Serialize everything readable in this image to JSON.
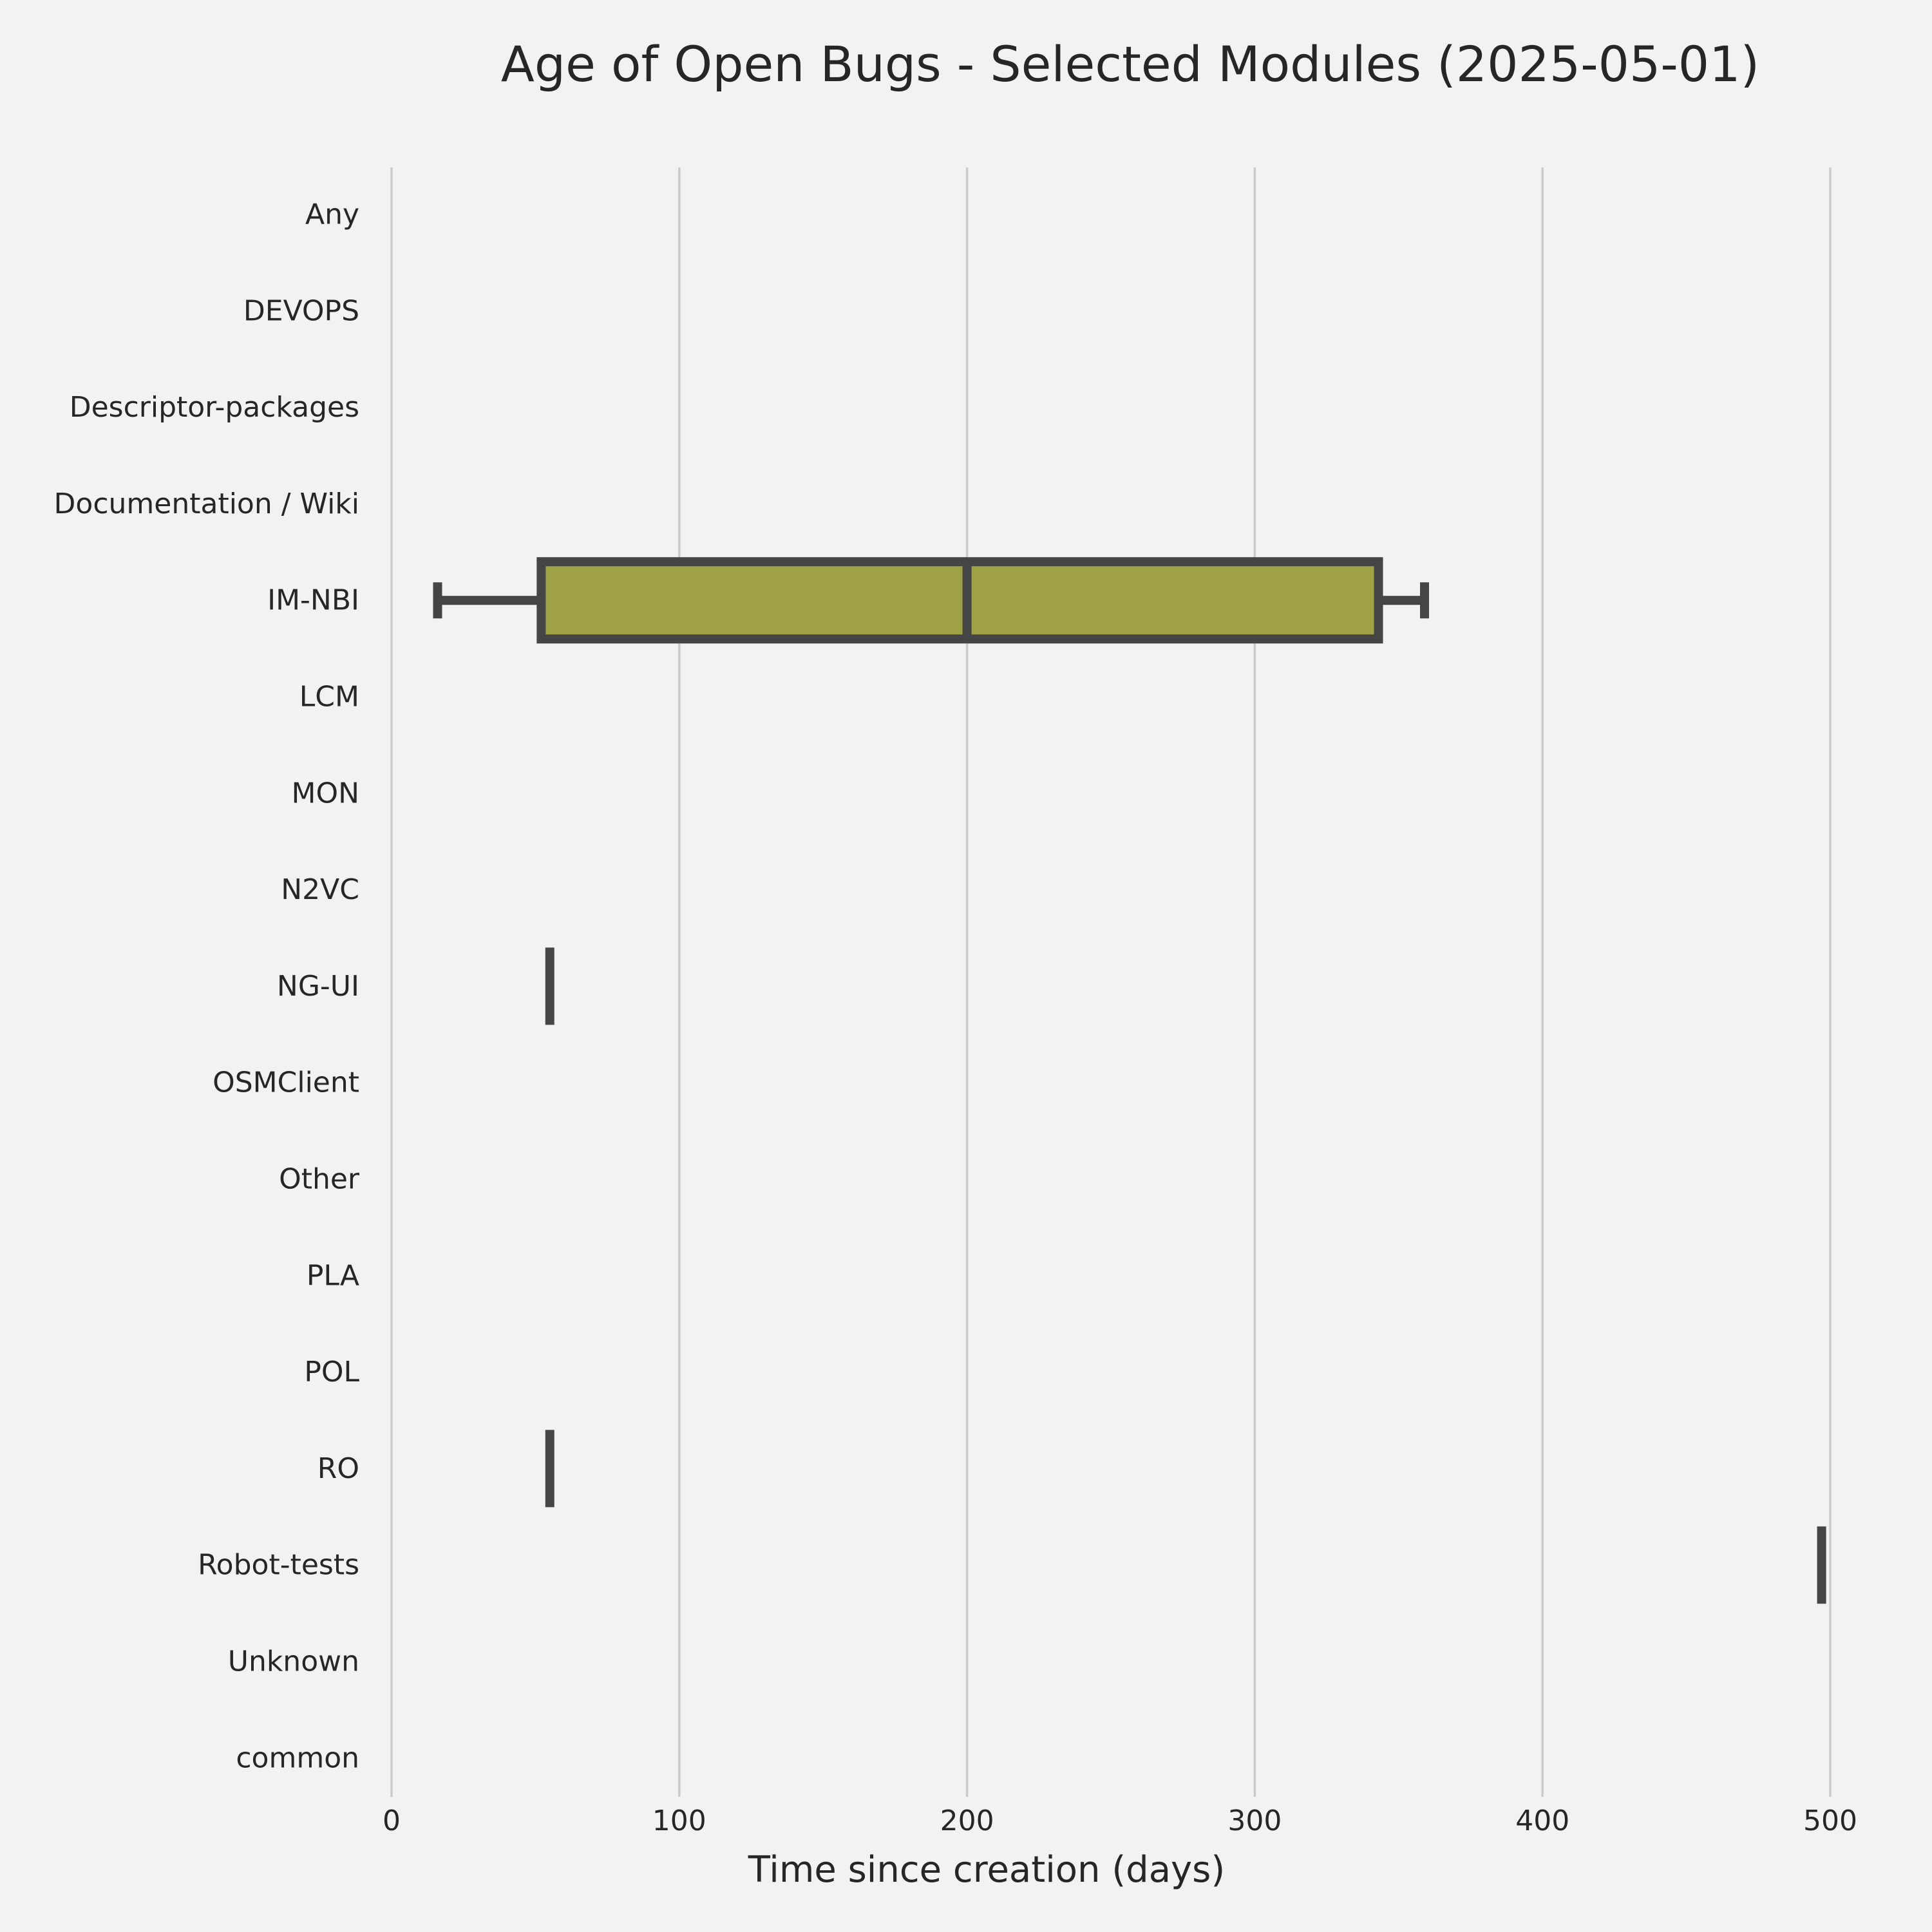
{
  "chart_data": {
    "type": "box",
    "orientation": "horizontal",
    "title": "Age of Open Bugs - Selected Modules (2025-05-01)",
    "xlabel": "Time since creation (days)",
    "ylabel": "",
    "xlim": [
      0,
      500
    ],
    "xticks": [
      0,
      100,
      200,
      300,
      400,
      500
    ],
    "xtick_labels": [
      "0",
      "100",
      "200",
      "300",
      "400",
      "500"
    ],
    "grid": "vertical",
    "categories": [
      "Any",
      "DEVOPS",
      "Descriptor-packages",
      "Documentation / Wiki",
      "IM-NBI",
      "LCM",
      "MON",
      "N2VC",
      "NG-UI",
      "OSMClient",
      "Other",
      "PLA",
      "POL",
      "RO",
      "Robot-tests",
      "Unknown",
      "common"
    ],
    "boxes": [
      {
        "category": "IM-NBI",
        "whisker_low": 16,
        "q1": 52,
        "median": 200,
        "q3": 343,
        "whisker_high": 359
      },
      {
        "category": "NG-UI",
        "whisker_low": 55,
        "q1": 55,
        "median": 55,
        "q3": 55,
        "whisker_high": 55
      },
      {
        "category": "RO",
        "whisker_low": 55,
        "q1": 55,
        "median": 55,
        "q3": 55,
        "whisker_high": 55
      },
      {
        "category": "Robot-tests",
        "whisker_low": 497,
        "q1": 497,
        "median": 497,
        "q3": 497,
        "whisker_high": 497
      }
    ],
    "colors": {
      "background": "#f2f2f2",
      "box_fill": "#9ea145",
      "line": "#454545",
      "grid": "#cbcbcb",
      "text": "#262626"
    }
  }
}
